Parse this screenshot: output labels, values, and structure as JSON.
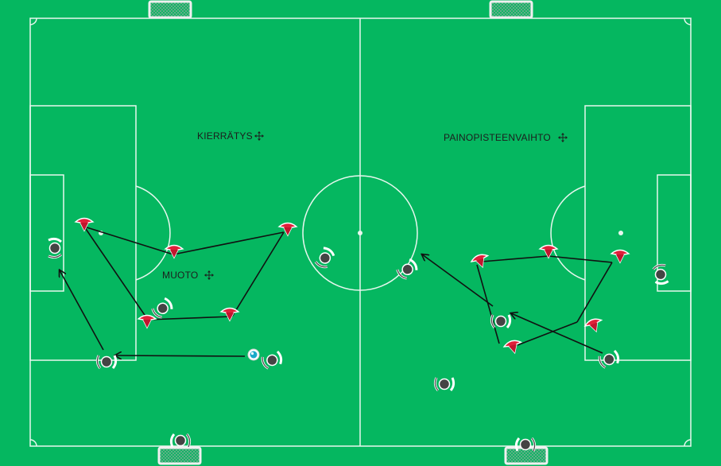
{
  "pitch": {
    "colors": {
      "grass": "#05b760",
      "lines": "#e8f7ee",
      "arrow": "#111111",
      "team_red": "#e0203a",
      "team_dark": "#444444",
      "ball": "#1aa9c9"
    }
  },
  "labels": {
    "kierratys": "KIERRÄTYS",
    "muoto": "MUOTO",
    "painopisteenvaihto": "PAINOPISTEENVAIHTO"
  },
  "icons": {
    "move": "move-arrows-icon",
    "goal": "goal-net-icon",
    "player": "player-icon",
    "cone": "cone-icon",
    "ball": "ball-icon"
  }
}
